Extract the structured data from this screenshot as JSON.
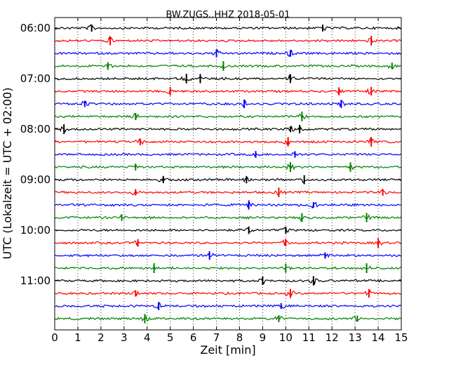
{
  "chart_data": {
    "type": "line",
    "title": "BW.ZUGS..HHZ 2018-05-01",
    "xlabel": "Zeit  [min]",
    "ylabel": "UTC (Lokalzeit = UTC + 02:00)",
    "xlim": [
      0,
      15
    ],
    "x_ticks": [
      "0",
      "1",
      "2",
      "3",
      "4",
      "5",
      "6",
      "7",
      "8",
      "9",
      "10",
      "11",
      "12",
      "13",
      "14",
      "15"
    ],
    "y_ticks": [
      "06:00",
      "07:00",
      "08:00",
      "09:00",
      "10:00",
      "11:00"
    ],
    "grid": "vertical dotted",
    "colors": [
      "#000000",
      "#ff0000",
      "#0000ff",
      "#008000"
    ],
    "traces": [
      {
        "start": "06:00",
        "color": "#000000",
        "spikes": [
          1.6,
          11.6
        ]
      },
      {
        "start": "06:15",
        "color": "#ff0000",
        "spikes": [
          2.4,
          13.7
        ]
      },
      {
        "start": "06:30",
        "color": "#0000ff",
        "spikes": [
          7.0,
          10.2
        ]
      },
      {
        "start": "06:45",
        "color": "#008000",
        "spikes": [
          2.3,
          7.3,
          14.6
        ]
      },
      {
        "start": "07:00",
        "color": "#000000",
        "spikes": [
          5.7,
          6.3,
          10.2
        ]
      },
      {
        "start": "07:15",
        "color": "#ff0000",
        "spikes": [
          5.0,
          12.3,
          13.7
        ]
      },
      {
        "start": "07:30",
        "color": "#0000ff",
        "spikes": [
          1.3,
          8.2,
          12.4
        ]
      },
      {
        "start": "07:45",
        "color": "#008000",
        "spikes": [
          3.5,
          10.7
        ]
      },
      {
        "start": "08:00",
        "color": "#000000",
        "spikes": [
          0.4,
          10.2,
          10.6
        ]
      },
      {
        "start": "08:15",
        "color": "#ff0000",
        "spikes": [
          3.7,
          10.1,
          13.7
        ]
      },
      {
        "start": "08:30",
        "color": "#0000ff",
        "spikes": [
          8.7,
          10.4
        ]
      },
      {
        "start": "08:45",
        "color": "#008000",
        "spikes": [
          3.5,
          10.2,
          12.8
        ]
      },
      {
        "start": "09:00",
        "color": "#000000",
        "spikes": [
          4.7,
          8.3,
          10.8
        ]
      },
      {
        "start": "09:15",
        "color": "#ff0000",
        "spikes": [
          3.5,
          9.7,
          14.2
        ]
      },
      {
        "start": "09:30",
        "color": "#0000ff",
        "spikes": [
          8.4,
          11.2
        ]
      },
      {
        "start": "09:45",
        "color": "#008000",
        "spikes": [
          2.9,
          10.7,
          13.5
        ]
      },
      {
        "start": "10:00",
        "color": "#000000",
        "spikes": [
          8.4,
          10.0
        ]
      },
      {
        "start": "10:15",
        "color": "#ff0000",
        "spikes": [
          3.6,
          10.0,
          14.0
        ]
      },
      {
        "start": "10:30",
        "color": "#0000ff",
        "spikes": [
          6.7,
          11.7
        ]
      },
      {
        "start": "10:45",
        "color": "#008000",
        "spikes": [
          4.3,
          10.0,
          13.5
        ]
      },
      {
        "start": "11:00",
        "color": "#000000",
        "spikes": [
          9.0,
          11.2
        ]
      },
      {
        "start": "11:15",
        "color": "#ff0000",
        "spikes": [
          3.5,
          10.2,
          13.6
        ]
      },
      {
        "start": "11:30",
        "color": "#0000ff",
        "spikes": [
          4.5,
          9.8
        ]
      },
      {
        "start": "11:45",
        "color": "#008000",
        "spikes": [
          3.9,
          9.7,
          13.1
        ]
      }
    ]
  }
}
